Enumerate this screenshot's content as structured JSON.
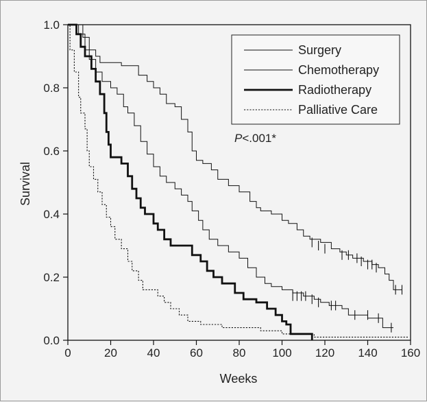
{
  "chart_data": {
    "type": "line",
    "title": "",
    "xlabel": "Weeks",
    "ylabel": "Survival",
    "xlim": [
      0,
      160
    ],
    "ylim": [
      0,
      1.0
    ],
    "xticks": [
      "0",
      "20",
      "40",
      "60",
      "80",
      "100",
      "120",
      "140",
      "160"
    ],
    "yticks": [
      "0.0",
      "0.2",
      "0.4",
      "0.6",
      "0.8",
      "1.0"
    ],
    "legend_position": "top-right",
    "annotation": "P<.001*",
    "series": [
      {
        "name": "Surgery",
        "style": "thin-solid",
        "color": "#111111",
        "points": [
          [
            0,
            1.0
          ],
          [
            5,
            1.0
          ],
          [
            7,
            0.96
          ],
          [
            10,
            0.92
          ],
          [
            13,
            0.9
          ],
          [
            15,
            0.88
          ],
          [
            20,
            0.88
          ],
          [
            25,
            0.87
          ],
          [
            30,
            0.87
          ],
          [
            33,
            0.84
          ],
          [
            37,
            0.82
          ],
          [
            40,
            0.8
          ],
          [
            43,
            0.78
          ],
          [
            46,
            0.75
          ],
          [
            50,
            0.74
          ],
          [
            53,
            0.7
          ],
          [
            56,
            0.66
          ],
          [
            58,
            0.6
          ],
          [
            60,
            0.57
          ],
          [
            63,
            0.56
          ],
          [
            67,
            0.54
          ],
          [
            70,
            0.51
          ],
          [
            75,
            0.49
          ],
          [
            80,
            0.47
          ],
          [
            85,
            0.44
          ],
          [
            88,
            0.42
          ],
          [
            90,
            0.41
          ],
          [
            95,
            0.4
          ],
          [
            100,
            0.38
          ],
          [
            103,
            0.37
          ],
          [
            107,
            0.35
          ],
          [
            110,
            0.33
          ],
          [
            113,
            0.32
          ],
          [
            118,
            0.31
          ],
          [
            123,
            0.29
          ],
          [
            127,
            0.28
          ],
          [
            130,
            0.27
          ],
          [
            133,
            0.26
          ],
          [
            138,
            0.25
          ],
          [
            142,
            0.24
          ],
          [
            145,
            0.23
          ],
          [
            148,
            0.21
          ],
          [
            150,
            0.19
          ],
          [
            152,
            0.16
          ],
          [
            156,
            0.16
          ]
        ],
        "censored": [
          [
            114,
            0.31
          ],
          [
            117,
            0.3
          ],
          [
            120,
            0.29
          ],
          [
            128,
            0.27
          ],
          [
            131,
            0.27
          ],
          [
            135,
            0.26
          ],
          [
            137,
            0.25
          ],
          [
            140,
            0.24
          ],
          [
            142,
            0.24
          ],
          [
            144,
            0.23
          ],
          [
            153,
            0.16
          ],
          [
            156,
            0.16
          ]
        ]
      },
      {
        "name": "Chemotherapy",
        "style": "thin-solid",
        "color": "#111111",
        "points": [
          [
            0,
            1.0
          ],
          [
            3,
            1.0
          ],
          [
            5,
            0.97
          ],
          [
            8,
            0.92
          ],
          [
            10,
            0.89
          ],
          [
            13,
            0.85
          ],
          [
            16,
            0.82
          ],
          [
            20,
            0.8
          ],
          [
            23,
            0.78
          ],
          [
            26,
            0.74
          ],
          [
            28,
            0.72
          ],
          [
            31,
            0.68
          ],
          [
            34,
            0.63
          ],
          [
            37,
            0.59
          ],
          [
            40,
            0.55
          ],
          [
            43,
            0.52
          ],
          [
            46,
            0.5
          ],
          [
            50,
            0.48
          ],
          [
            53,
            0.46
          ],
          [
            56,
            0.44
          ],
          [
            58,
            0.41
          ],
          [
            61,
            0.38
          ],
          [
            63,
            0.35
          ],
          [
            66,
            0.32
          ],
          [
            70,
            0.3
          ],
          [
            75,
            0.28
          ],
          [
            80,
            0.26
          ],
          [
            84,
            0.23
          ],
          [
            88,
            0.2
          ],
          [
            92,
            0.18
          ],
          [
            95,
            0.17
          ],
          [
            100,
            0.16
          ],
          [
            105,
            0.15
          ],
          [
            110,
            0.14
          ],
          [
            115,
            0.13
          ],
          [
            118,
            0.12
          ],
          [
            122,
            0.11
          ],
          [
            125,
            0.11
          ],
          [
            128,
            0.1
          ],
          [
            131,
            0.08
          ],
          [
            135,
            0.08
          ],
          [
            140,
            0.07
          ],
          [
            145,
            0.07
          ],
          [
            147,
            0.04
          ],
          [
            152,
            0.04
          ]
        ],
        "censored": [
          [
            105,
            0.14
          ],
          [
            107,
            0.14
          ],
          [
            109,
            0.14
          ],
          [
            111,
            0.14
          ],
          [
            114,
            0.13
          ],
          [
            117,
            0.12
          ],
          [
            123,
            0.11
          ],
          [
            125,
            0.11
          ],
          [
            134,
            0.08
          ],
          [
            140,
            0.08
          ],
          [
            145,
            0.07
          ],
          [
            151,
            0.04
          ]
        ]
      },
      {
        "name": "Radiotherapy",
        "style": "thick-solid",
        "color": "#111111",
        "points": [
          [
            0,
            1.0
          ],
          [
            3,
            1.0
          ],
          [
            4,
            0.97
          ],
          [
            6,
            0.93
          ],
          [
            8,
            0.9
          ],
          [
            11,
            0.86
          ],
          [
            13,
            0.82
          ],
          [
            15,
            0.78
          ],
          [
            17,
            0.72
          ],
          [
            18,
            0.66
          ],
          [
            19,
            0.62
          ],
          [
            20,
            0.58
          ],
          [
            23,
            0.58
          ],
          [
            25,
            0.56
          ],
          [
            28,
            0.52
          ],
          [
            30,
            0.48
          ],
          [
            32,
            0.45
          ],
          [
            34,
            0.42
          ],
          [
            36,
            0.4
          ],
          [
            40,
            0.37
          ],
          [
            42,
            0.35
          ],
          [
            45,
            0.32
          ],
          [
            48,
            0.3
          ],
          [
            52,
            0.3
          ],
          [
            55,
            0.3
          ],
          [
            58,
            0.27
          ],
          [
            62,
            0.25
          ],
          [
            65,
            0.22
          ],
          [
            68,
            0.2
          ],
          [
            72,
            0.18
          ],
          [
            78,
            0.15
          ],
          [
            82,
            0.13
          ],
          [
            88,
            0.12
          ],
          [
            93,
            0.1
          ],
          [
            97,
            0.08
          ],
          [
            100,
            0.06
          ],
          [
            102,
            0.05
          ],
          [
            104,
            0.02
          ],
          [
            110,
            0.02
          ],
          [
            114,
            0.0
          ]
        ]
      },
      {
        "name": "Palliative Care",
        "style": "dotted",
        "color": "#111111",
        "points": [
          [
            0,
            1.0
          ],
          [
            1,
            0.92
          ],
          [
            3,
            0.85
          ],
          [
            5,
            0.77
          ],
          [
            6,
            0.72
          ],
          [
            8,
            0.67
          ],
          [
            9,
            0.6
          ],
          [
            10,
            0.55
          ],
          [
            12,
            0.51
          ],
          [
            14,
            0.47
          ],
          [
            16,
            0.43
          ],
          [
            18,
            0.39
          ],
          [
            20,
            0.36
          ],
          [
            22,
            0.32
          ],
          [
            25,
            0.29
          ],
          [
            28,
            0.25
          ],
          [
            30,
            0.22
          ],
          [
            33,
            0.19
          ],
          [
            35,
            0.16
          ],
          [
            40,
            0.16
          ],
          [
            42,
            0.14
          ],
          [
            45,
            0.12
          ],
          [
            48,
            0.1
          ],
          [
            52,
            0.08
          ],
          [
            56,
            0.06
          ],
          [
            62,
            0.05
          ],
          [
            68,
            0.05
          ],
          [
            72,
            0.04
          ],
          [
            80,
            0.04
          ],
          [
            90,
            0.03
          ],
          [
            100,
            0.02
          ],
          [
            105,
            0.02
          ],
          [
            110,
            0.02
          ],
          [
            115,
            0.01
          ],
          [
            130,
            0.01
          ],
          [
            159,
            0.01
          ]
        ]
      }
    ]
  }
}
